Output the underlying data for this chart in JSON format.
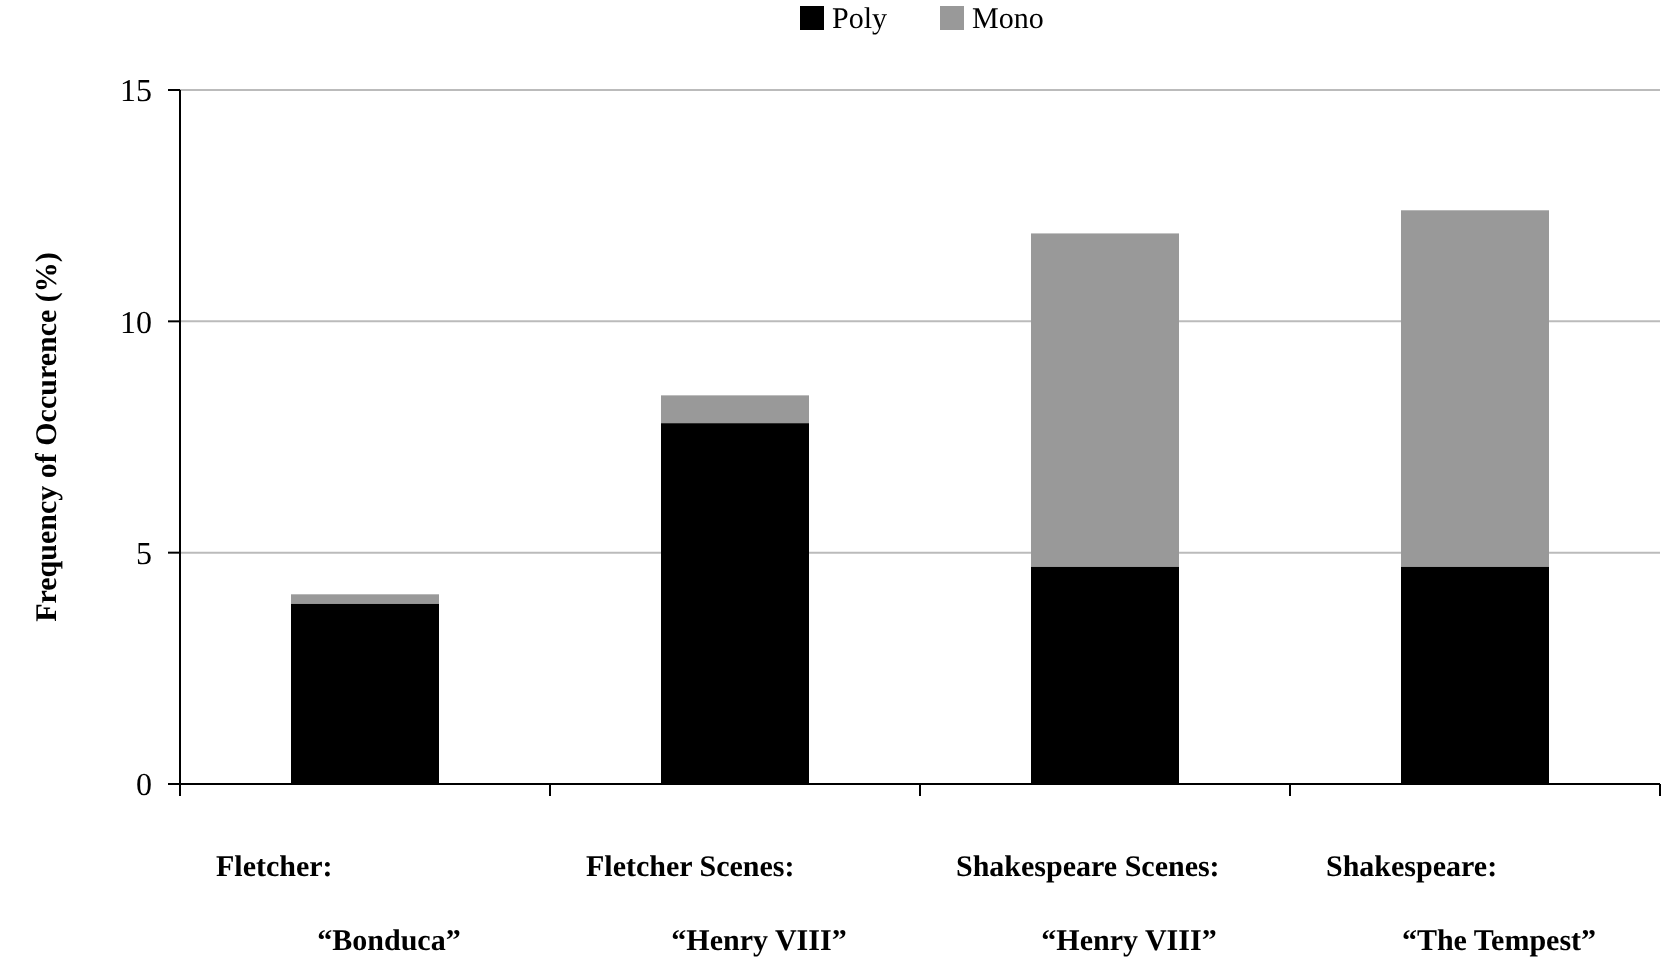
{
  "chart_data": {
    "type": "bar",
    "stacked": true,
    "ylabel": "Frequency of Occurence (%)",
    "categories": [
      "Fletcher:\n“Bonduca”",
      "Fletcher Scenes:\n“Henry VIII”",
      "Shakespeare Scenes:\n“Henry VIII”",
      "Shakespeare:\n“The Tempest”"
    ],
    "series": [
      {
        "name": "Poly",
        "color": "#000000",
        "values": [
          3.9,
          7.8,
          4.7,
          4.7
        ]
      },
      {
        "name": "Mono",
        "color": "#999999",
        "values": [
          0.2,
          0.6,
          7.2,
          7.7
        ]
      }
    ],
    "ylim": [
      0,
      15
    ],
    "yticks": [
      0,
      5,
      10,
      15
    ],
    "grid": "y",
    "legend": "top"
  }
}
